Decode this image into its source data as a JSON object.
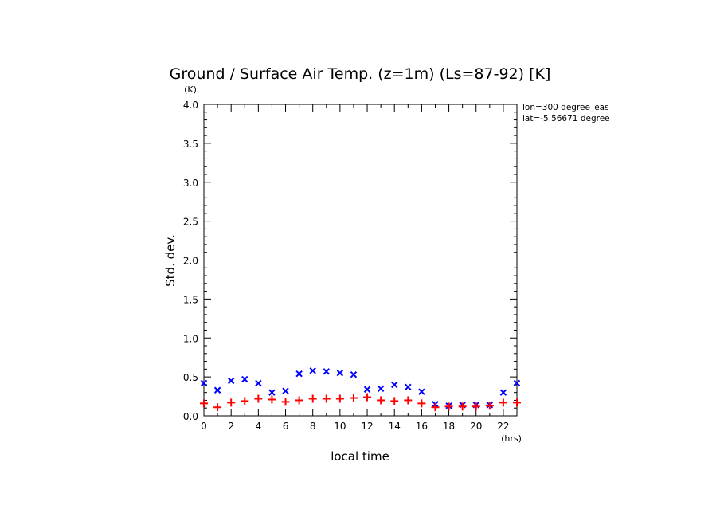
{
  "chart_data": {
    "type": "scatter",
    "title": "Ground / Surface Air Temp. (z=1m) (Ls=87-92) [K]",
    "xlabel": "local time",
    "ylabel": "Std. dev.",
    "x_unit": "(hrs)",
    "y_unit": "(K)",
    "annotations": [
      "lon=300 degree_eas",
      "lat=-5.56671 degree"
    ],
    "xlim": [
      0,
      23
    ],
    "ylim": [
      0,
      4
    ],
    "x_ticks": [
      0,
      2,
      4,
      6,
      8,
      10,
      12,
      14,
      16,
      18,
      20,
      22
    ],
    "y_ticks": [
      "0.0",
      "0.5",
      "1.0",
      "1.5",
      "2.0",
      "2.5",
      "3.0",
      "3.5",
      "4.0"
    ],
    "grid": false,
    "series": [
      {
        "marker": "x",
        "color": "#0000ff",
        "x": [
          0,
          1,
          2,
          3,
          4,
          5,
          6,
          7,
          8,
          9,
          10,
          11,
          12,
          13,
          14,
          15,
          16,
          17,
          18,
          19,
          20,
          21,
          22,
          23
        ],
        "values": [
          0.42,
          0.33,
          0.45,
          0.47,
          0.42,
          0.3,
          0.32,
          0.54,
          0.58,
          0.57,
          0.55,
          0.53,
          0.34,
          0.35,
          0.4,
          0.37,
          0.31,
          0.15,
          0.13,
          0.14,
          0.14,
          0.14,
          0.3,
          0.42
        ]
      },
      {
        "marker": "+",
        "color": "#ff0000",
        "x": [
          0,
          1,
          2,
          3,
          4,
          5,
          6,
          7,
          8,
          9,
          10,
          11,
          12,
          13,
          14,
          15,
          16,
          17,
          18,
          19,
          20,
          21,
          22,
          23
        ],
        "values": [
          0.16,
          0.11,
          0.17,
          0.19,
          0.22,
          0.21,
          0.18,
          0.2,
          0.22,
          0.22,
          0.22,
          0.23,
          0.24,
          0.2,
          0.19,
          0.2,
          0.16,
          0.11,
          0.12,
          0.12,
          0.12,
          0.13,
          0.17,
          0.17
        ]
      }
    ]
  }
}
